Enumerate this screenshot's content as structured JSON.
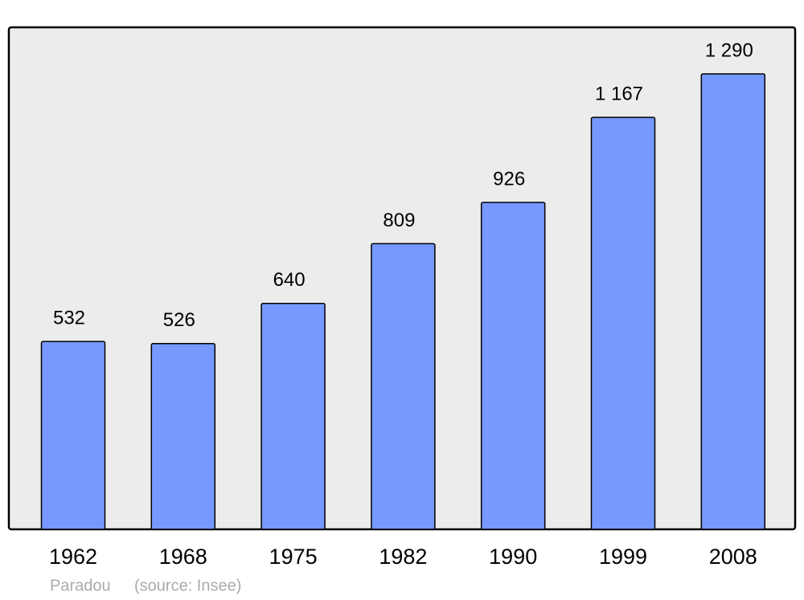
{
  "chart_data": {
    "type": "bar",
    "categories": [
      "1962",
      "1968",
      "1975",
      "1982",
      "1990",
      "1999",
      "2008"
    ],
    "values": [
      532,
      526,
      640,
      809,
      926,
      1167,
      1290
    ],
    "value_labels": [
      "532",
      "526",
      "640",
      "809",
      "926",
      "1 167",
      "1 290"
    ],
    "color": "#7799ff",
    "caption": "Paradou",
    "source": "(source: Insee)"
  }
}
